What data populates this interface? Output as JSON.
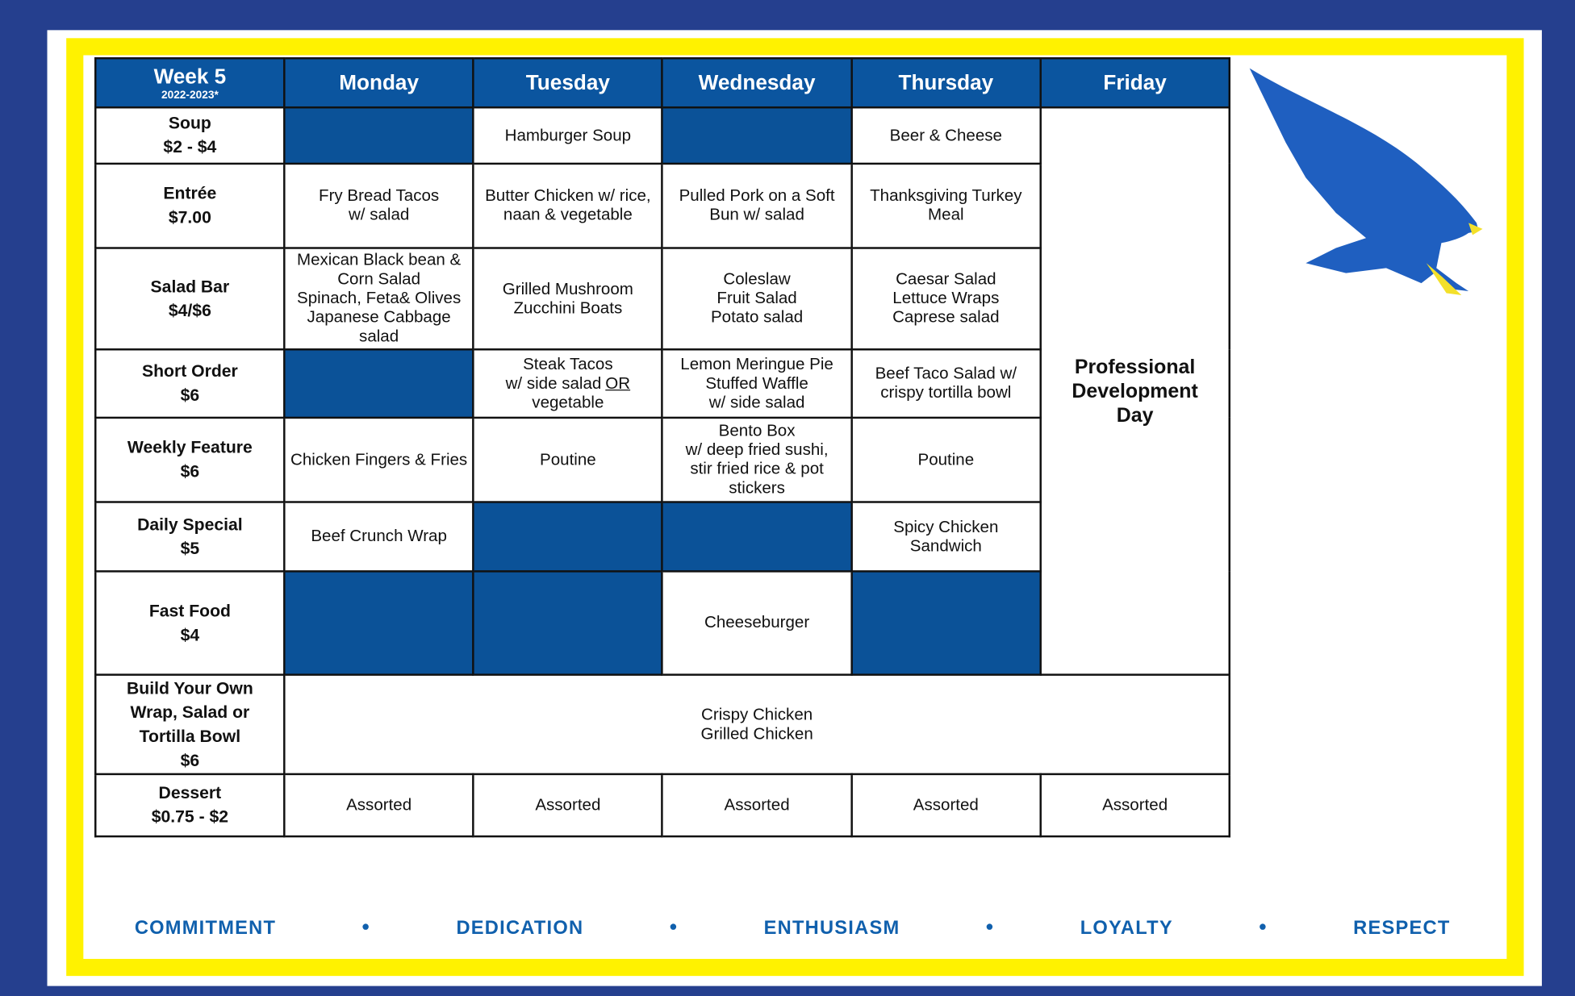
{
  "header": {
    "week": "Week 5",
    "year": "2022-2023*",
    "days": [
      "Monday",
      "Tuesday",
      "Wednesday",
      "Thursday",
      "Friday"
    ]
  },
  "friday_note": [
    "Professional",
    "Development",
    "Day"
  ],
  "rows": [
    {
      "label": [
        "Soup",
        "$2 - $4"
      ],
      "cells": [
        null,
        {
          "lines": [
            "Hamburger Soup"
          ]
        },
        null,
        {
          "lines": [
            "Beer & Cheese"
          ]
        }
      ]
    },
    {
      "label": [
        "Entrée",
        "$7.00"
      ],
      "cells": [
        {
          "lines": [
            "Fry Bread Tacos",
            "w/ salad"
          ]
        },
        {
          "lines": [
            "Butter Chicken w/ rice,",
            "naan & vegetable"
          ]
        },
        {
          "lines": [
            "Pulled Pork on a Soft",
            "Bun w/ salad"
          ]
        },
        {
          "lines": [
            "Thanksgiving Turkey",
            "Meal"
          ]
        }
      ]
    },
    {
      "label": [
        "Salad Bar",
        "$4/$6"
      ],
      "cells": [
        {
          "lines": [
            "Mexican Black bean &",
            "Corn Salad",
            "Spinach, Feta& Olives",
            "Japanese Cabbage",
            "salad"
          ]
        },
        {
          "lines": [
            "Grilled Mushroom",
            "Zucchini Boats"
          ]
        },
        {
          "lines": [
            "Coleslaw",
            "Fruit Salad",
            "Potato salad"
          ]
        },
        {
          "lines": [
            "Caesar Salad",
            "Lettuce Wraps",
            "Caprese salad"
          ]
        }
      ]
    },
    {
      "label": [
        "Short Order",
        "$6"
      ],
      "cells": [
        null,
        {
          "lines": [
            "Steak Tacos",
            [
              {
                "text": "w/ side salad"
              },
              {
                "text": "OR",
                "underline": true
              }
            ],
            "vegetable"
          ]
        },
        {
          "lines": [
            "Lemon Meringue Pie",
            "Stuffed Waffle",
            "w/ side salad"
          ]
        },
        {
          "lines": [
            "Beef Taco Salad w/",
            "crispy tortilla bowl"
          ]
        }
      ]
    },
    {
      "label": [
        "Weekly Feature",
        "$6"
      ],
      "cells": [
        {
          "lines": [
            "Chicken Fingers & Fries"
          ]
        },
        {
          "lines": [
            "Poutine"
          ]
        },
        {
          "lines": [
            "Bento Box",
            "w/ deep fried sushi,",
            "stir fried rice & pot",
            "stickers"
          ]
        },
        {
          "lines": [
            "Poutine"
          ]
        }
      ]
    },
    {
      "label": [
        "Daily Special",
        "$5"
      ],
      "cells": [
        {
          "lines": [
            "Beef Crunch Wrap"
          ]
        },
        null,
        null,
        {
          "lines": [
            "Spicy Chicken",
            "Sandwich"
          ]
        }
      ]
    },
    {
      "label": [
        "Fast Food",
        "$4"
      ],
      "cells": [
        null,
        null,
        {
          "lines": [
            "Cheeseburger"
          ]
        },
        null
      ]
    },
    {
      "label": [
        "Build Your Own",
        "Wrap, Salad or",
        "Tortilla Bowl",
        "$6"
      ],
      "cells": [
        {
          "lines": [
            "Crispy Chicken",
            "Grilled Chicken"
          ]
        }
      ]
    },
    {
      "label": [
        "Dessert",
        "$0.75 - $2"
      ],
      "cells": [
        {
          "lines": [
            "Assorted"
          ]
        },
        {
          "lines": [
            "Assorted"
          ]
        },
        {
          "lines": [
            "Assorted"
          ]
        },
        {
          "lines": [
            "Assorted"
          ]
        },
        {
          "lines": [
            "Assorted"
          ]
        }
      ]
    }
  ],
  "footer": [
    "COMMITMENT",
    "DEDICATION",
    "ENTHUSIASM",
    "LOYALTY",
    "RESPECT"
  ]
}
